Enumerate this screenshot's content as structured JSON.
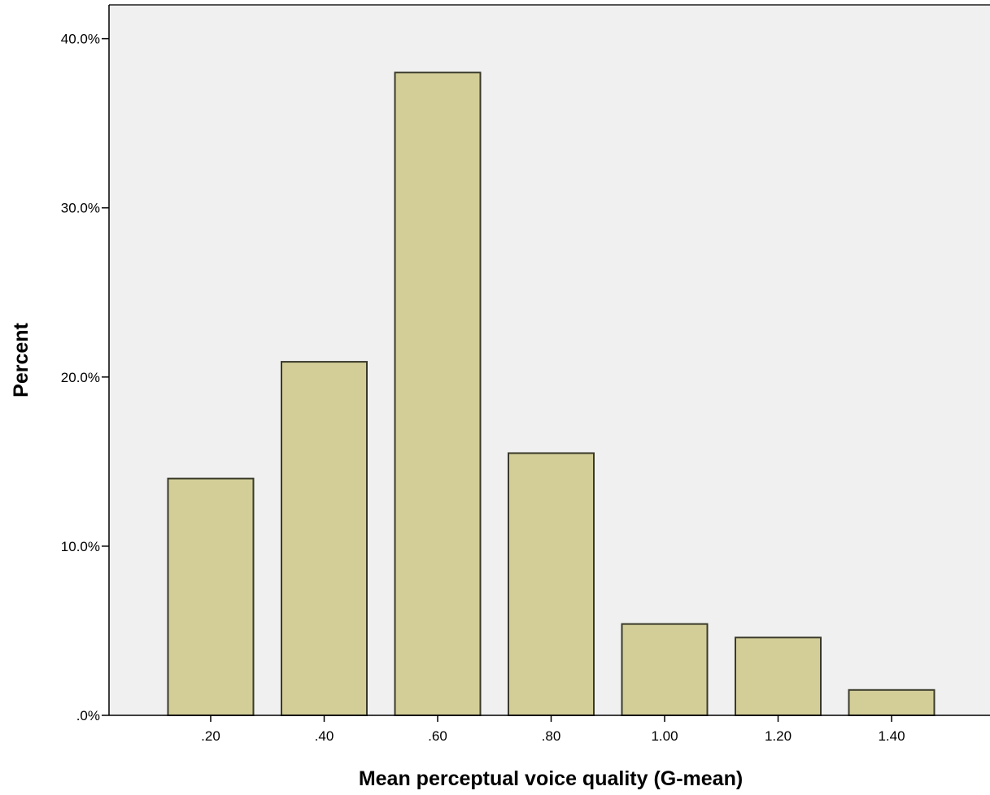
{
  "chart_data": {
    "type": "bar",
    "title": "",
    "xlabel": "Mean perceptual voice quality (G-mean)",
    "ylabel": "Percent",
    "categories": [
      ".20",
      ".40",
      ".60",
      ".80",
      "1.00",
      "1.20",
      "1.40"
    ],
    "values": [
      14.0,
      20.9,
      38.0,
      15.5,
      5.4,
      4.6,
      1.5
    ],
    "ylim": [
      0,
      42
    ],
    "y_ticks": [
      0,
      10,
      20,
      30,
      40
    ],
    "y_tick_labels": [
      ".0%",
      "10.0%",
      "20.0%",
      "30.0%",
      "40.0%"
    ],
    "grid": false,
    "legend": "none",
    "colors": {
      "plot_background": "#f0f0f0",
      "bar_fill": "#d3ce98",
      "bar_stroke": "#3a3a2a",
      "axis": "#000000"
    }
  }
}
